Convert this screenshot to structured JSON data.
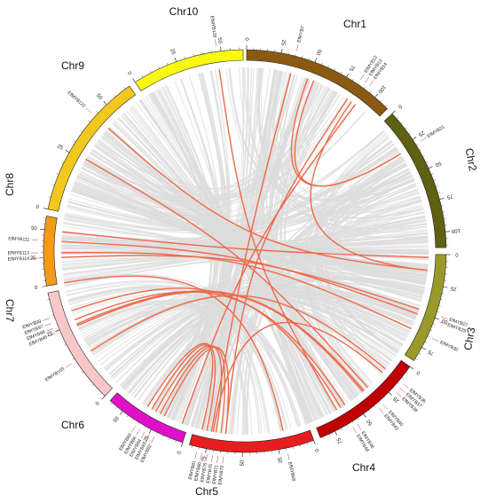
{
  "chromosomes": [
    {
      "name": "Chr1",
      "color": "#8a5a12",
      "ticks": [
        "0",
        "25",
        "50",
        "75",
        "100"
      ]
    },
    {
      "name": "Chr2",
      "color": "#5f6012",
      "ticks": [
        "0",
        "25",
        "50",
        "75",
        "100"
      ]
    },
    {
      "name": "Chr3",
      "color": "#9a9a2a",
      "ticks": [
        "0",
        "25",
        "50",
        "75"
      ]
    },
    {
      "name": "Chr4",
      "color": "#c00000",
      "ticks": [
        "0",
        "25",
        "50",
        "75"
      ]
    },
    {
      "name": "Chr5",
      "color": "#e81e1e",
      "ticks": [
        "0",
        "25",
        "50",
        "75"
      ]
    },
    {
      "name": "Chr6",
      "color": "#e010c8",
      "ticks": [
        "0",
        "25",
        "50"
      ]
    },
    {
      "name": "Chr7",
      "color": "#f8c8c8",
      "ticks": [
        "0",
        "25"
      ]
    },
    {
      "name": "Chr8",
      "color": "#f59a18",
      "ticks": [
        "0",
        "25",
        "50"
      ]
    },
    {
      "name": "Chr9",
      "color": "#f2c81e",
      "ticks": [
        "0",
        "25",
        "50"
      ]
    },
    {
      "name": "Chr10",
      "color": "#f8f812",
      "ticks": [
        "0",
        "25",
        "50"
      ]
    }
  ],
  "genes": [
    {
      "name": "EfMYB7",
      "chr": "Chr1"
    },
    {
      "name": "EfMYB12",
      "chr": "Chr1"
    },
    {
      "name": "EfMYB13",
      "chr": "Chr1"
    },
    {
      "name": "EfMYB14",
      "chr": "Chr1"
    },
    {
      "name": "EfMYB21",
      "chr": "Chr2"
    },
    {
      "name": "EfMYB27",
      "chr": "Chr3"
    },
    {
      "name": "EfMYB29",
      "chr": "Chr3"
    },
    {
      "name": "EfMYB30",
      "chr": "Chr3"
    },
    {
      "name": "EfMYB36",
      "chr": "Chr4"
    },
    {
      "name": "EfMYB37",
      "chr": "Chr4"
    },
    {
      "name": "EfMYB38",
      "chr": "Chr4"
    },
    {
      "name": "EfMYB40",
      "chr": "Chr4"
    },
    {
      "name": "EfMYB42",
      "chr": "Chr4"
    },
    {
      "name": "EfMYB46",
      "chr": "Chr4"
    },
    {
      "name": "EfMYB48",
      "chr": "Chr4"
    },
    {
      "name": "EfMYB68",
      "chr": "Chr4"
    },
    {
      "name": "EfMYB70",
      "chr": "Chr5"
    },
    {
      "name": "EfMYB71",
      "chr": "Chr5"
    },
    {
      "name": "EfMYB75",
      "chr": "Chr5"
    },
    {
      "name": "EfMYB76",
      "chr": "Chr5"
    },
    {
      "name": "EfMYB80",
      "chr": "Chr5"
    },
    {
      "name": "EfMYB81",
      "chr": "Chr5"
    },
    {
      "name": "EfMYB82",
      "chr": "Chr6"
    },
    {
      "name": "EfMYB83",
      "chr": "Chr6"
    },
    {
      "name": "EfMYB84",
      "chr": "Chr6"
    },
    {
      "name": "EfMYB86",
      "chr": "Chr6"
    },
    {
      "name": "EfMYB88",
      "chr": "Chr6"
    },
    {
      "name": "EfMYB95",
      "chr": "Chr7"
    },
    {
      "name": "EfMYB96",
      "chr": "Chr7"
    },
    {
      "name": "EfMYB97",
      "chr": "Chr7"
    },
    {
      "name": "EfMYB99",
      "chr": "Chr7"
    },
    {
      "name": "EfMYB103",
      "chr": "Chr7"
    },
    {
      "name": "EfMYB111",
      "chr": "Chr8"
    },
    {
      "name": "EfMYB113",
      "chr": "Chr8"
    },
    {
      "name": "EfMYB114",
      "chr": "Chr8"
    },
    {
      "name": "EfMYB122",
      "chr": "Chr9"
    },
    {
      "name": "EfMYB128",
      "chr": "Chr10"
    }
  ],
  "colors": {
    "segmental_link": "#ee6a4a",
    "background_link": "#dcdcdc"
  }
}
